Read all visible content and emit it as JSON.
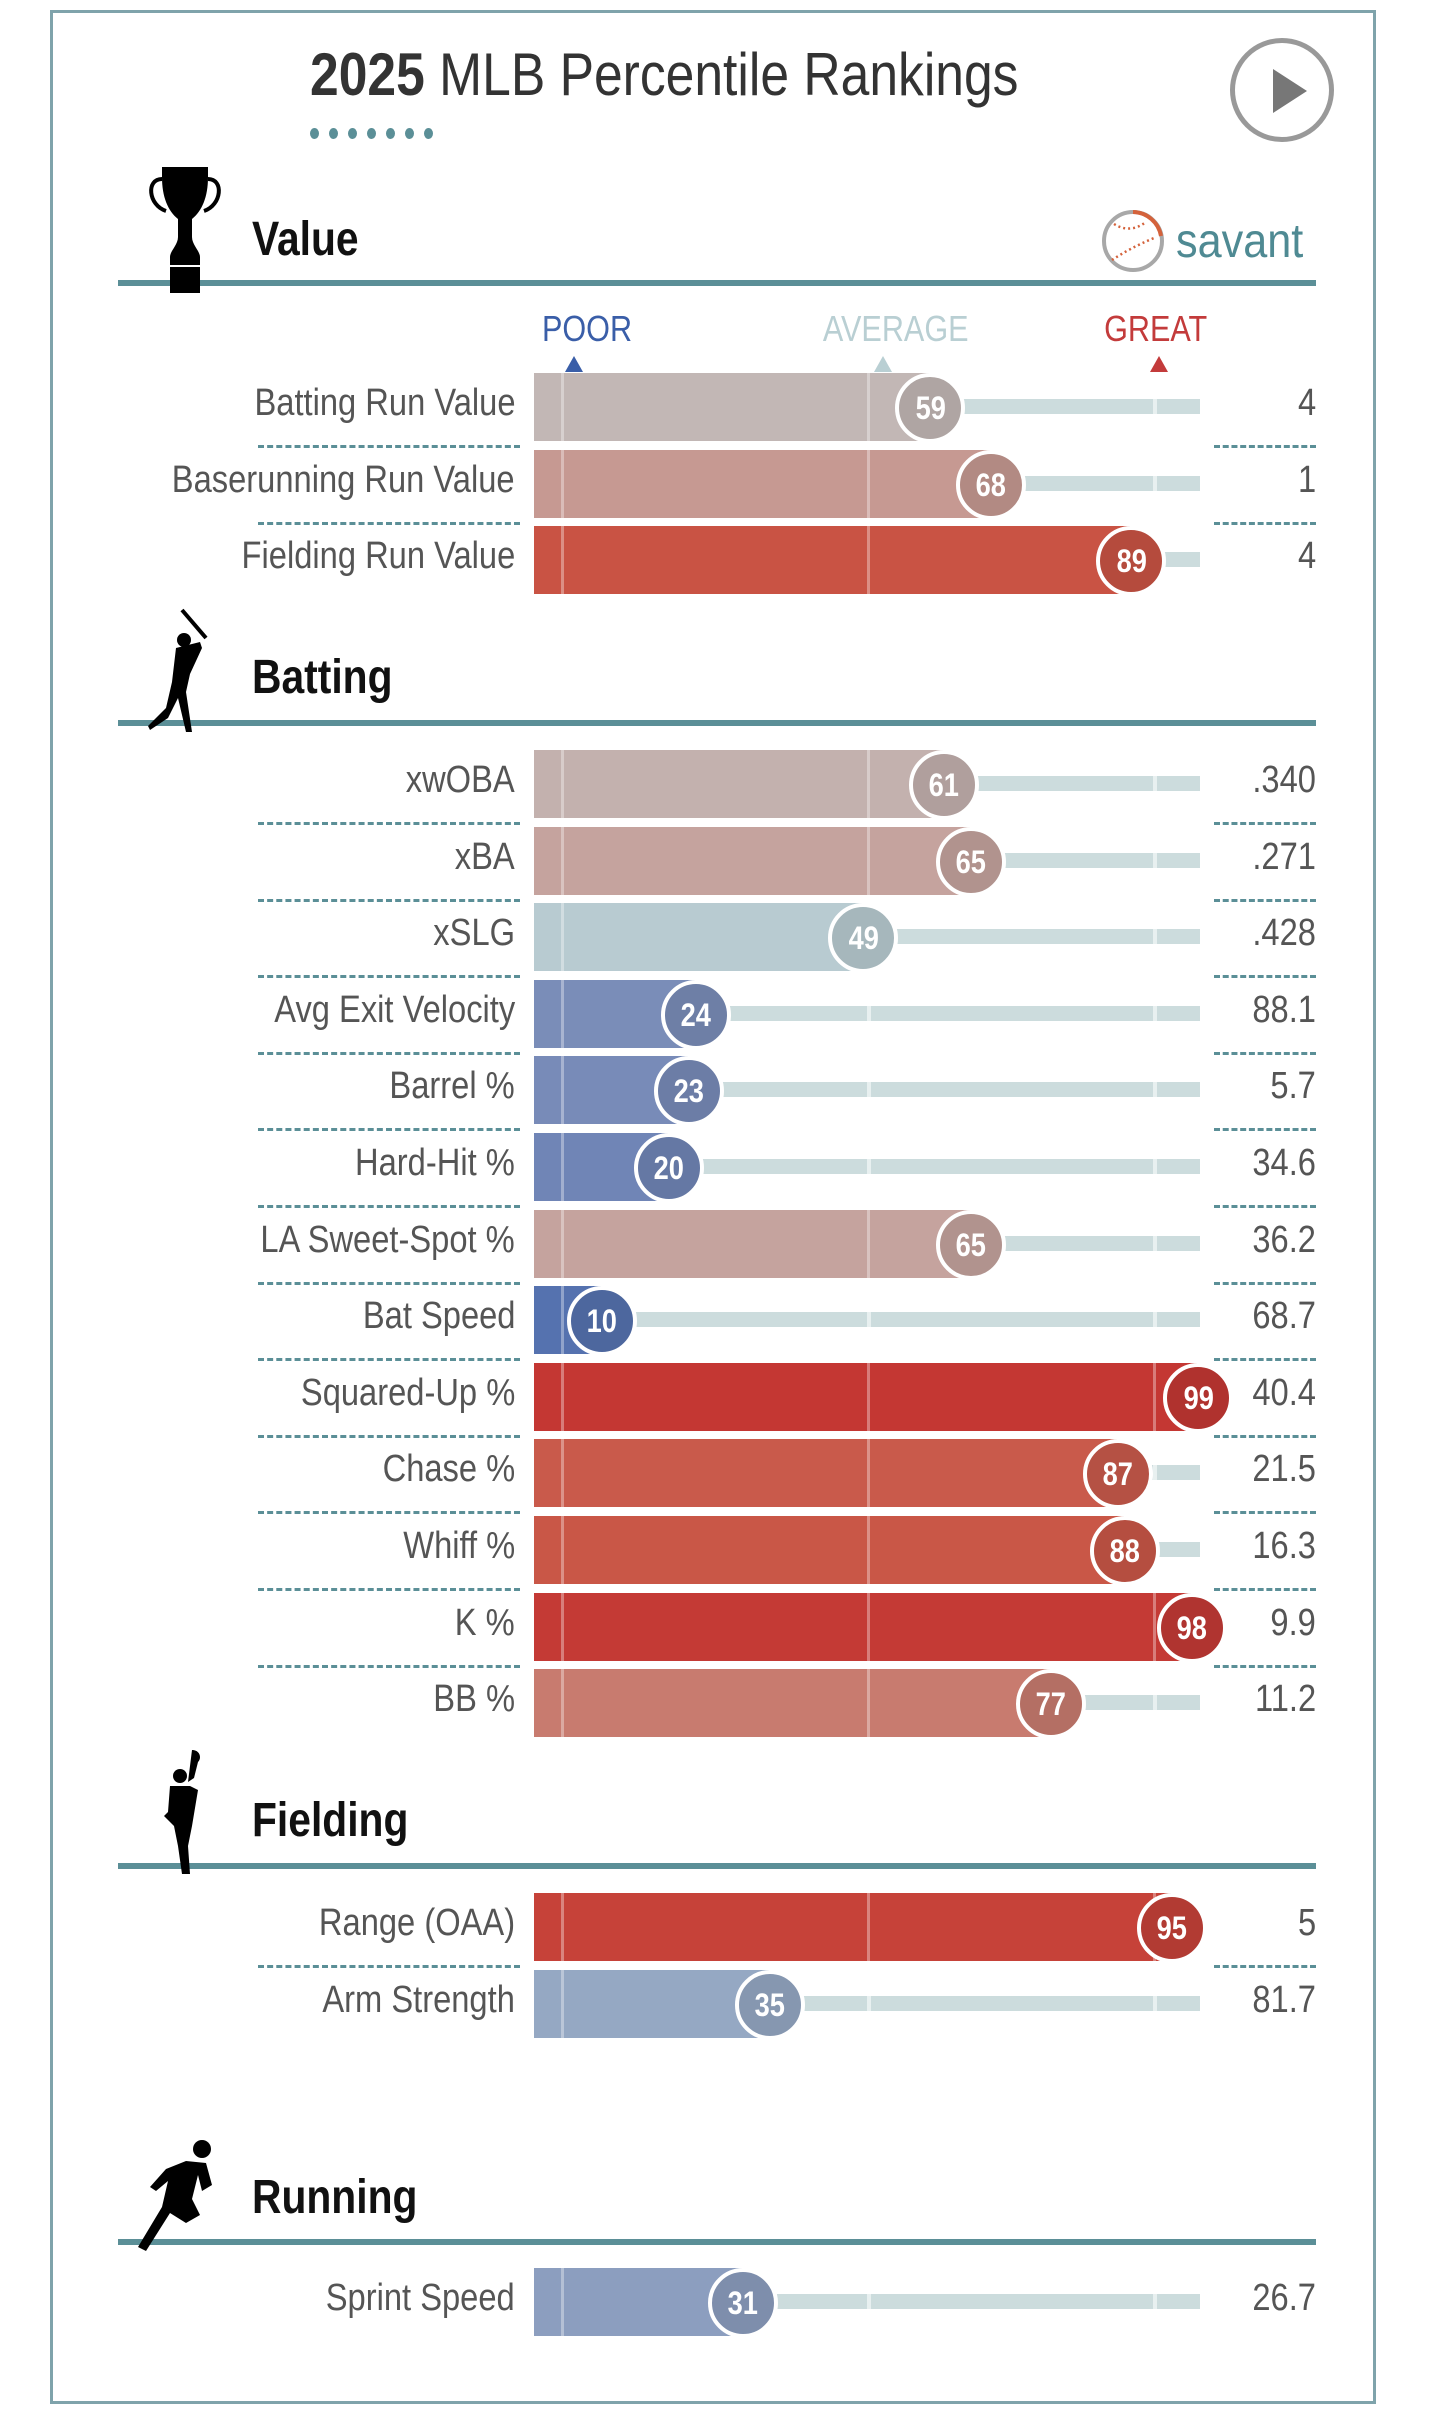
{
  "header": {
    "title_bold": "2025",
    "title_rest": " MLB Percentile Rankings",
    "play_button": "play-icon",
    "brand": "savant"
  },
  "legend": {
    "poor": "POOR",
    "average": "AVERAGE",
    "great": "GREAT",
    "colors": {
      "poor": "#3a5ea8",
      "average": "#b9cfd3",
      "great": "#c33b3b"
    }
  },
  "chart_data": {
    "type": "bar",
    "title": "2025 MLB Percentile Rankings",
    "xlabel": "Percentile",
    "xlim": [
      0,
      100
    ],
    "scale_markers": [
      {
        "label": "POOR",
        "percentile": 5
      },
      {
        "label": "AVERAGE",
        "percentile": 50
      },
      {
        "label": "GREAT",
        "percentile": 95
      }
    ],
    "sections": [
      {
        "name": "Value",
        "icon": "trophy-icon",
        "rows": [
          {
            "label": "Batting Run Value",
            "percentile": 59,
            "stat": "4"
          },
          {
            "label": "Baserunning Run Value",
            "percentile": 68,
            "stat": "1"
          },
          {
            "label": "Fielding Run Value",
            "percentile": 89,
            "stat": "4"
          }
        ]
      },
      {
        "name": "Batting",
        "icon": "batter-icon",
        "rows": [
          {
            "label": "xwOBA",
            "percentile": 61,
            "stat": ".340"
          },
          {
            "label": "xBA",
            "percentile": 65,
            "stat": ".271"
          },
          {
            "label": "xSLG",
            "percentile": 49,
            "stat": ".428"
          },
          {
            "label": "Avg Exit Velocity",
            "percentile": 24,
            "stat": "88.1"
          },
          {
            "label": "Barrel %",
            "percentile": 23,
            "stat": "5.7"
          },
          {
            "label": "Hard-Hit %",
            "percentile": 20,
            "stat": "34.6"
          },
          {
            "label": "LA Sweet-Spot %",
            "percentile": 65,
            "stat": "36.2"
          },
          {
            "label": "Bat Speed",
            "percentile": 10,
            "stat": "68.7"
          },
          {
            "label": "Squared-Up %",
            "percentile": 99,
            "stat": "40.4"
          },
          {
            "label": "Chase %",
            "percentile": 87,
            "stat": "21.5"
          },
          {
            "label": "Whiff %",
            "percentile": 88,
            "stat": "16.3"
          },
          {
            "label": "K %",
            "percentile": 98,
            "stat": "9.9"
          },
          {
            "label": "BB %",
            "percentile": 77,
            "stat": "11.2"
          }
        ]
      },
      {
        "name": "Fielding",
        "icon": "fielder-icon",
        "rows": [
          {
            "label": "Range (OAA)",
            "percentile": 95,
            "stat": "5"
          },
          {
            "label": "Arm Strength",
            "percentile": 35,
            "stat": "81.7"
          }
        ]
      },
      {
        "name": "Running",
        "icon": "runner-icon",
        "rows": [
          {
            "label": "Sprint Speed",
            "percentile": 31,
            "stat": "26.7"
          }
        ]
      }
    ]
  }
}
